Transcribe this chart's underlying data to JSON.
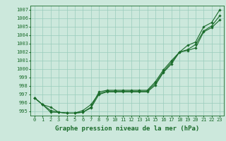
{
  "title": "Graphe pression niveau de la mer (hPa)",
  "xlabel_hours": [
    0,
    1,
    2,
    3,
    4,
    5,
    6,
    7,
    8,
    9,
    10,
    11,
    12,
    13,
    14,
    15,
    16,
    17,
    18,
    19,
    20,
    21,
    22,
    23
  ],
  "line1": [
    996.6,
    995.8,
    995.5,
    994.9,
    994.8,
    994.8,
    994.9,
    995.5,
    997.3,
    997.5,
    997.5,
    997.5,
    997.5,
    997.5,
    997.5,
    998.5,
    999.9,
    1001.0,
    1002.0,
    1002.8,
    1003.2,
    1005.0,
    1005.5,
    1007.0
  ],
  "line2": [
    996.6,
    995.8,
    995.1,
    994.9,
    994.8,
    994.8,
    995.1,
    995.8,
    997.1,
    997.4,
    997.4,
    997.4,
    997.4,
    997.4,
    997.4,
    998.3,
    999.7,
    1000.8,
    1002.0,
    1002.3,
    1002.9,
    1004.5,
    1005.1,
    1006.3
  ],
  "line3": [
    996.6,
    995.8,
    994.9,
    994.9,
    994.8,
    994.8,
    994.9,
    995.4,
    997.0,
    997.3,
    997.3,
    997.3,
    997.3,
    997.3,
    997.3,
    998.1,
    999.6,
    1000.6,
    1002.0,
    1002.2,
    1002.5,
    1004.4,
    1004.9,
    1005.8
  ],
  "ylim": [
    994.5,
    1007.5
  ],
  "yticks": [
    995,
    996,
    997,
    998,
    999,
    1000,
    1001,
    1002,
    1003,
    1004,
    1005,
    1006,
    1007
  ],
  "bg_color": "#cce8dc",
  "grid_color": "#99ccbb",
  "line_color": "#1a6b2a",
  "marker": "D",
  "marker_size": 1.8,
  "line_width": 0.8,
  "title_fontsize": 6.5,
  "tick_fontsize": 5.0,
  "fig_width": 3.2,
  "fig_height": 2.0,
  "dpi": 100
}
